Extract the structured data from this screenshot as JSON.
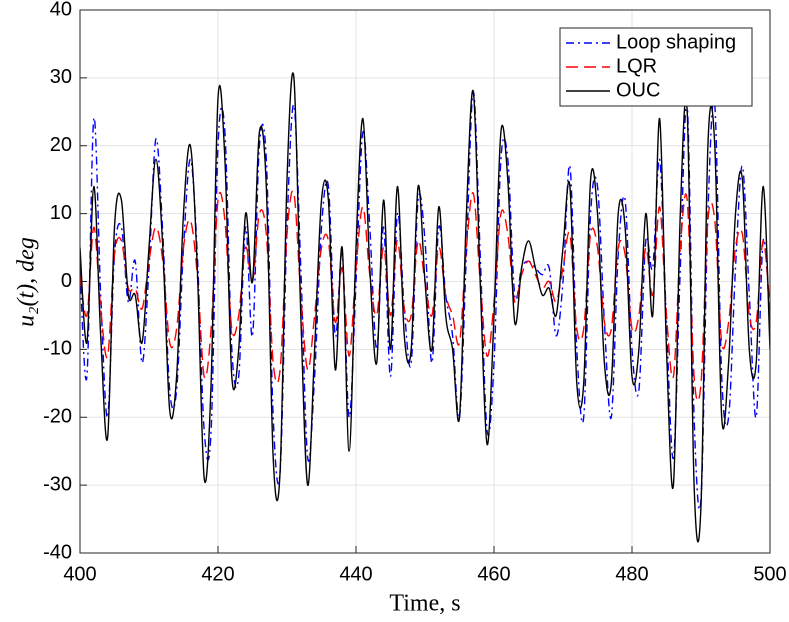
{
  "chart_data": {
    "type": "line",
    "xlabel": "Time, s",
    "ylabel": "u₂(t), deg",
    "x": [
      400,
      401,
      402,
      403,
      404,
      405,
      406,
      407,
      408,
      409,
      410,
      411,
      412,
      413,
      414,
      415,
      416,
      417,
      418,
      419,
      420,
      421,
      422,
      423,
      424,
      425,
      426,
      427,
      428,
      429,
      430,
      431,
      432,
      433,
      434,
      435,
      436,
      437,
      438,
      439,
      440,
      441,
      442,
      443,
      444,
      445,
      446,
      447,
      448,
      449,
      450,
      451,
      452,
      453,
      454,
      455,
      456,
      457,
      458,
      459,
      460,
      461,
      462,
      463,
      464,
      465,
      466,
      467,
      468,
      469,
      470,
      471,
      472,
      473,
      474,
      475,
      476,
      477,
      478,
      479,
      480,
      481,
      482,
      483,
      484,
      485,
      486,
      487,
      488,
      489,
      490,
      491,
      492,
      493,
      494,
      495,
      496,
      497,
      498,
      499,
      500
    ],
    "series": [
      {
        "name": "Loop shaping",
        "color": "#0000ff",
        "dash": "dashdot",
        "values": [
          2,
          -14,
          24,
          -2,
          -20,
          4,
          8,
          -3,
          3,
          -12,
          2,
          21,
          7,
          -16,
          -16,
          5,
          18,
          4,
          -22,
          -22,
          20,
          22,
          -10,
          -14,
          8,
          -8,
          20,
          18,
          -20,
          -28,
          8,
          26,
          2,
          -26,
          -14,
          8,
          14,
          -8,
          4,
          -20,
          0,
          22,
          8,
          -10,
          8,
          -14,
          10,
          -4,
          -12,
          12,
          6,
          -12,
          8,
          -2,
          -8,
          -20,
          4,
          28,
          4,
          -22,
          -12,
          18,
          18,
          -2,
          2,
          3,
          2,
          1,
          2,
          -8,
          0,
          17,
          -10,
          -20,
          10,
          14,
          -6,
          -20,
          4,
          12,
          -10,
          -16,
          6,
          2,
          18,
          -6,
          -26,
          2,
          26,
          -20,
          -32,
          10,
          26,
          -14,
          -20,
          2,
          17,
          -2,
          -20,
          6,
          -6
        ]
      },
      {
        "name": "LQR",
        "color": "#ff0000",
        "dash": "dashed",
        "values": [
          1,
          -5,
          8,
          -4,
          -11,
          4,
          6,
          -1,
          -1,
          -4,
          3,
          8,
          3,
          -9,
          -7,
          5,
          9,
          1,
          -14,
          -7,
          12,
          9,
          -7,
          -5,
          5,
          0,
          10,
          7,
          -12,
          -13,
          7,
          13,
          -2,
          -13,
          -5,
          5,
          6,
          -6,
          2,
          -11,
          2,
          11,
          1,
          -5,
          5,
          -5,
          6,
          -4,
          -5,
          6,
          0,
          -5,
          5,
          -2,
          -5,
          -9,
          5,
          13,
          0,
          -11,
          -3,
          10,
          7,
          -3,
          1,
          3,
          1,
          -1,
          0,
          -3,
          2,
          7,
          -7,
          -7,
          7,
          5,
          -6,
          -7,
          5,
          4,
          -7,
          -5,
          5,
          -2,
          11,
          -5,
          -14,
          5,
          12,
          -14,
          -15,
          9,
          9,
          -9,
          -6,
          5,
          7,
          -5,
          -6,
          6,
          -4
        ]
      },
      {
        "name": "OUC",
        "color": "#000000",
        "dash": "solid",
        "values": [
          5,
          -9,
          14,
          -8,
          -23,
          8,
          12,
          -2,
          -2,
          -9,
          5,
          18,
          5,
          -19,
          -14,
          10,
          20,
          2,
          -29,
          -15,
          27,
          18,
          -14,
          -10,
          10,
          0,
          22,
          14,
          -26,
          -28,
          15,
          30,
          -5,
          -30,
          -10,
          12,
          12,
          -13,
          5,
          -25,
          5,
          24,
          2,
          -12,
          12,
          -10,
          14,
          -8,
          -10,
          14,
          0,
          -10,
          11,
          -5,
          -10,
          -20,
          10,
          28,
          0,
          -24,
          -5,
          22,
          15,
          -6,
          2,
          6,
          2,
          -2,
          -1,
          -5,
          5,
          14,
          -15,
          -15,
          15,
          10,
          -12,
          -15,
          10,
          8,
          -14,
          -10,
          10,
          -5,
          24,
          -10,
          -30,
          10,
          25,
          -30,
          -33,
          20,
          20,
          -20,
          -12,
          10,
          15,
          -10,
          -12,
          14,
          -10
        ]
      }
    ],
    "xlim": [
      400,
      500
    ],
    "xticks": [
      400,
      420,
      440,
      460,
      480,
      500
    ],
    "ylim": [
      -40,
      40
    ],
    "yticks": [
      -40,
      -30,
      -20,
      -10,
      0,
      10,
      20,
      30,
      40
    ],
    "grid": true,
    "legend": "upper right"
  }
}
